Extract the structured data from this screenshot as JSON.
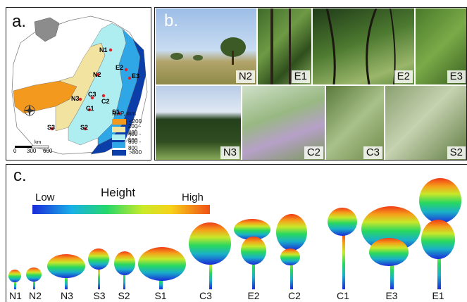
{
  "panel_a": {
    "label": "a.",
    "site_labels": [
      "N1",
      "N2",
      "E2",
      "E3",
      "N3",
      "C3",
      "C2",
      "C1",
      "S1",
      "S3",
      "S2"
    ],
    "legend": {
      "title": "MAP, mm",
      "items": [
        {
          "label": "<200",
          "color": "#f39a1e"
        },
        {
          "label": "200 - 400",
          "color": "#f3e3a0"
        },
        {
          "label": "400 - 600",
          "color": "#aeeef0"
        },
        {
          "label": "600 - 800",
          "color": "#2fa6e6"
        },
        {
          "label": ">800",
          "color": "#0b3ea8"
        }
      ]
    },
    "scale_labels": [
      "0",
      "300",
      "600"
    ],
    "scale_unit": "km"
  },
  "panel_b": {
    "label": "b.",
    "photos_top": [
      "N2",
      "E1",
      "E2",
      "E3"
    ],
    "photos_bottom": [
      "N3",
      "C2",
      "C3",
      "S2"
    ]
  },
  "panel_c": {
    "label": "c.",
    "colorbar": {
      "title": "Height",
      "low": "Low",
      "high": "High"
    },
    "trees": [
      "N1",
      "N2",
      "N3",
      "S3",
      "S2",
      "S1",
      "C3",
      "E2",
      "C2",
      "C1",
      "E3",
      "E1"
    ]
  }
}
